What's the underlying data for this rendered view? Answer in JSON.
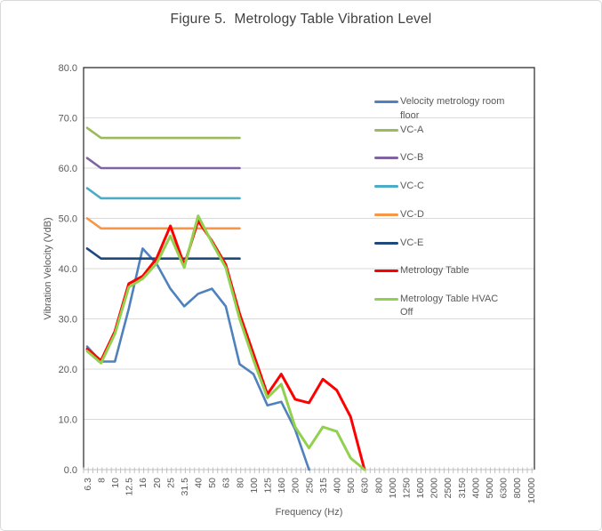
{
  "figure_title": "Figure 5.  Metrology Table Vibration Level",
  "chart_data": {
    "type": "line",
    "title": "Figure 5.  Metrology Table Vibration Level",
    "xlabel": "Frequency (Hz)",
    "ylabel": "Vibration Velocity (VdB)",
    "ylim": [
      0,
      80
    ],
    "ytick_step": 10,
    "ytick_labels": [
      "0.0",
      "10.0",
      "20.0",
      "30.0",
      "40.0",
      "50.0",
      "60.0",
      "70.0",
      "80.0"
    ],
    "grid": "horizontal",
    "legend_position": "right-inside",
    "categories": [
      "6.3",
      "8",
      "10",
      "12.5",
      "16",
      "20",
      "25",
      "31.5",
      "40",
      "50",
      "63",
      "80",
      "100",
      "125",
      "160",
      "200",
      "250",
      "315",
      "400",
      "500",
      "630",
      "800",
      "1000",
      "1250",
      "1600",
      "2000",
      "2500",
      "3150",
      "4000",
      "5000",
      "6300",
      "8000",
      "10000"
    ],
    "series": [
      {
        "name": "Velocity metrology room floor",
        "color": "#4F81BD",
        "stroke_width": 2.6,
        "values": [
          24.5,
          21.5,
          21.5,
          32,
          44,
          41,
          36,
          32.5,
          35,
          36,
          32.5,
          21,
          19,
          12.8,
          13.5,
          8,
          0,
          null,
          null,
          null,
          null,
          null,
          null,
          null,
          null,
          null,
          null,
          null,
          null,
          null,
          null,
          null,
          null
        ]
      },
      {
        "name": "VC-A",
        "color": "#9BBB59",
        "stroke_width": 2.6,
        "values": [
          68,
          66,
          66,
          66,
          66,
          66,
          66,
          66,
          66,
          66,
          66,
          66,
          null,
          null,
          null,
          null,
          null,
          null,
          null,
          null,
          null,
          null,
          null,
          null,
          null,
          null,
          null,
          null,
          null,
          null,
          null,
          null,
          null
        ]
      },
      {
        "name": "VC-B",
        "color": "#8064A2",
        "stroke_width": 2.6,
        "values": [
          62,
          60,
          60,
          60,
          60,
          60,
          60,
          60,
          60,
          60,
          60,
          60,
          null,
          null,
          null,
          null,
          null,
          null,
          null,
          null,
          null,
          null,
          null,
          null,
          null,
          null,
          null,
          null,
          null,
          null,
          null,
          null,
          null
        ]
      },
      {
        "name": "VC-C",
        "color": "#4BACC6",
        "stroke_width": 2.6,
        "values": [
          56,
          54,
          54,
          54,
          54,
          54,
          54,
          54,
          54,
          54,
          54,
          54,
          null,
          null,
          null,
          null,
          null,
          null,
          null,
          null,
          null,
          null,
          null,
          null,
          null,
          null,
          null,
          null,
          null,
          null,
          null,
          null,
          null
        ]
      },
      {
        "name": "VC-D",
        "color": "#F79646",
        "stroke_width": 2.6,
        "values": [
          50,
          48,
          48,
          48,
          48,
          48,
          48,
          48,
          48,
          48,
          48,
          48,
          null,
          null,
          null,
          null,
          null,
          null,
          null,
          null,
          null,
          null,
          null,
          null,
          null,
          null,
          null,
          null,
          null,
          null,
          null,
          null,
          null
        ]
      },
      {
        "name": "VC-E",
        "color": "#1F497D",
        "stroke_width": 2.6,
        "values": [
          44,
          42,
          42,
          42,
          42,
          42,
          42,
          42,
          42,
          42,
          42,
          42,
          null,
          null,
          null,
          null,
          null,
          null,
          null,
          null,
          null,
          null,
          null,
          null,
          null,
          null,
          null,
          null,
          null,
          null,
          null,
          null,
          null
        ]
      },
      {
        "name": "Metrology Table",
        "color": "#FF0000",
        "stroke_width": 3,
        "values": [
          24,
          21.7,
          27.5,
          37,
          38.5,
          42,
          48.5,
          40.7,
          49.5,
          45.5,
          40.8,
          31,
          23,
          15,
          19,
          14,
          13.3,
          18,
          15.8,
          10.5,
          0,
          null,
          null,
          null,
          null,
          null,
          null,
          null,
          null,
          null,
          null,
          null,
          null
        ]
      },
      {
        "name": "Metrology Table HVAC Off",
        "color": "#92D050",
        "stroke_width": 3,
        "values": [
          23.6,
          21.2,
          27,
          36.3,
          38,
          41,
          46.5,
          40.2,
          50.5,
          45.2,
          40.2,
          30,
          21.8,
          14.3,
          17,
          8.5,
          4.3,
          8.5,
          7.6,
          2.3,
          0,
          null,
          null,
          null,
          null,
          null,
          null,
          null,
          null,
          null,
          null,
          null,
          null
        ]
      }
    ]
  },
  "colors": {
    "title_text": "#404040",
    "axis_text": "#595959",
    "plot_border": "#262626",
    "gridline": "#D9D9D9",
    "category_axis": "#BFBFBF"
  }
}
